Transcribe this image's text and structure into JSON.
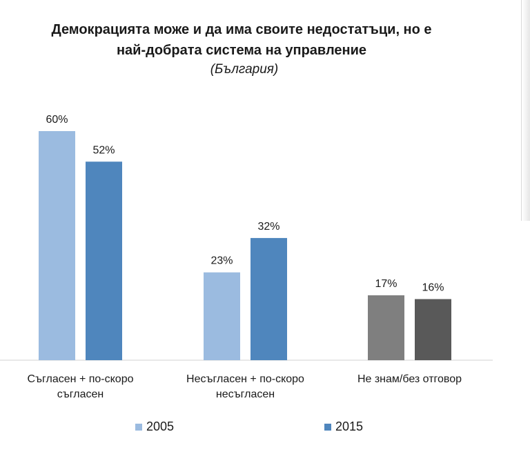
{
  "chart_data": {
    "type": "bar",
    "title_lines": [
      "Демокрацията може и да има своите недостатъци, но е",
      "най-добрата система на управление"
    ],
    "subtitle": "(България)",
    "categories": [
      [
        "Съгласен + по-скоро",
        "съгласен"
      ],
      [
        "Несъгласен + по-скоро",
        "несъгласен"
      ],
      [
        "Не знам/без отговор"
      ]
    ],
    "series": [
      {
        "name": "2005",
        "values": [
          60,
          23,
          17
        ],
        "labels": [
          "60%",
          "23%",
          "17%"
        ],
        "color": "#9bbbe0",
        "special_colors": {
          "2": "#7f7f7f"
        }
      },
      {
        "name": "2015",
        "values": [
          52,
          32,
          16
        ],
        "labels": [
          "52%",
          "32%",
          "16%"
        ],
        "color": "#4f86bd",
        "special_colors": {
          "2": "#595959"
        }
      }
    ],
    "ylim": [
      0,
      60
    ],
    "grid": false,
    "legend_position": "bottom"
  }
}
